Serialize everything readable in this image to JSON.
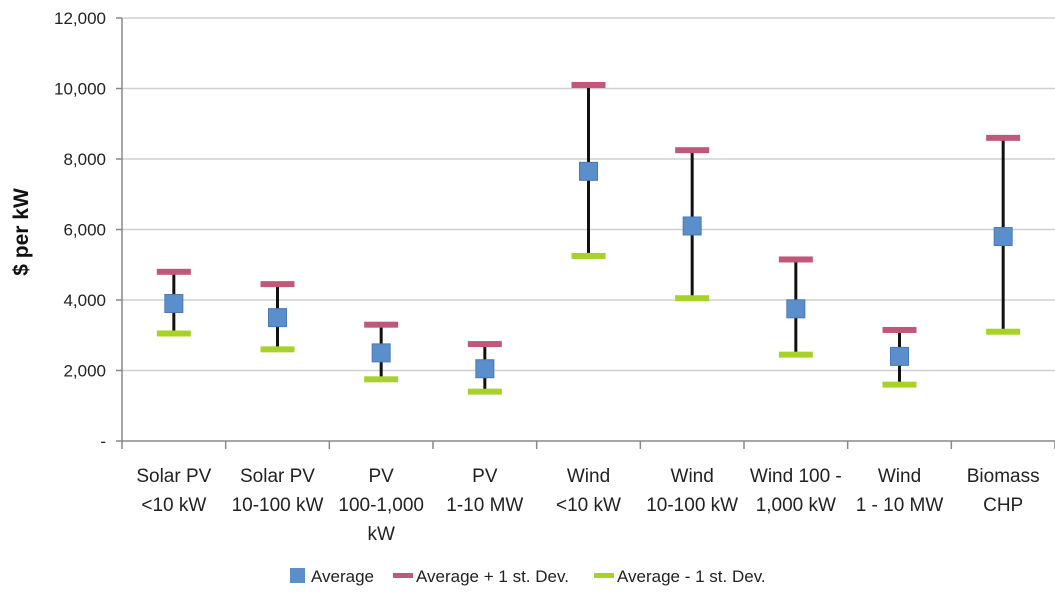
{
  "chart_data": {
    "type": "scatter",
    "title": "",
    "xlabel": "",
    "ylabel": "$ per kW",
    "ylim": [
      0,
      12000
    ],
    "yticks": [
      0,
      2000,
      4000,
      6000,
      8000,
      10000,
      12000
    ],
    "ytick_labels": [
      "-",
      "2,000",
      "4,000",
      "6,000",
      "8,000",
      "10,000",
      "12,000"
    ],
    "grid": true,
    "legend_position": "bottom",
    "categories": [
      [
        "Solar PV",
        "<10 kW"
      ],
      [
        "Solar PV",
        "10-100 kW"
      ],
      [
        "PV",
        "100-1,000",
        "kW"
      ],
      [
        "PV",
        "1-10 MW"
      ],
      [
        "Wind",
        "<10 kW"
      ],
      [
        "Wind",
        "10-100 kW"
      ],
      [
        "Wind 100 -",
        "1,000 kW"
      ],
      [
        "Wind",
        "1 - 10 MW"
      ],
      [
        "Biomass",
        "CHP"
      ]
    ],
    "series": [
      {
        "name": "Average",
        "color": "#5b8fcb",
        "marker": "square",
        "values": [
          3900,
          3500,
          2500,
          2050,
          7650,
          6100,
          3750,
          2400,
          5800
        ]
      },
      {
        "name": "Average + 1 st. Dev.",
        "color": "#c0587a",
        "marker": "dash",
        "values": [
          4800,
          4450,
          3300,
          2750,
          10100,
          8250,
          5150,
          3150,
          8600
        ]
      },
      {
        "name": "Average - 1 st. Dev.",
        "color": "#a8d12a",
        "marker": "dash",
        "values": [
          3050,
          2600,
          1750,
          1400,
          5250,
          4050,
          2450,
          1600,
          3100
        ]
      }
    ]
  }
}
